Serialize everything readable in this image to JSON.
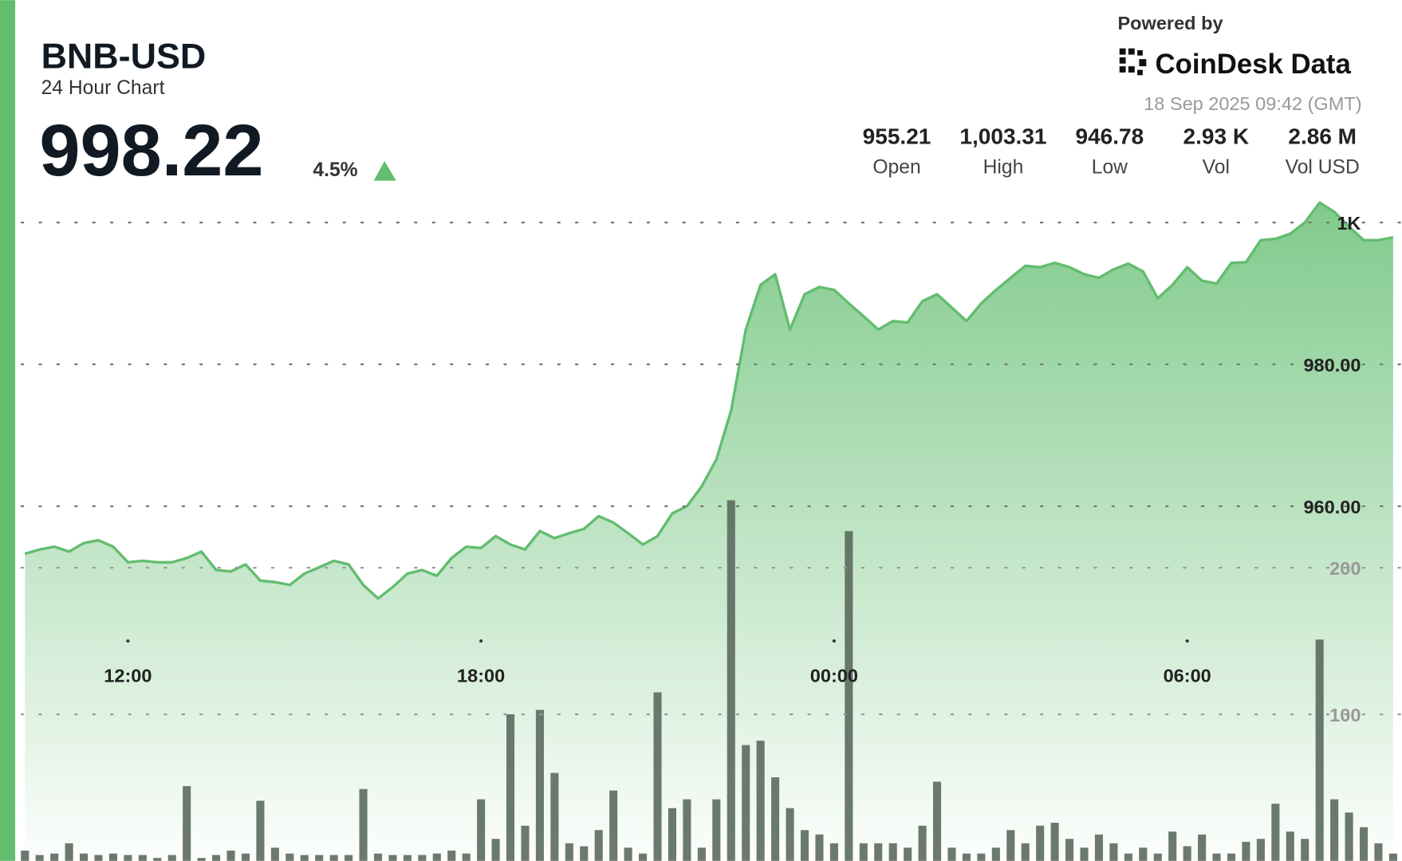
{
  "chart_data": {
    "type": "area",
    "title": "BNB-USD",
    "subtitle": "24 Hour Chart",
    "price": "998.22",
    "change": "4.5%",
    "powered_by": "Powered by",
    "brand": "CoinDesk Data",
    "timestamp": "18 Sep 2025 09:42 (GMT)",
    "stats": [
      {
        "value": "955.21",
        "label": "Open"
      },
      {
        "value": "1,003.31",
        "label": "High"
      },
      {
        "value": "946.78",
        "label": "Low"
      },
      {
        "value": "2.93 K",
        "label": "Vol"
      },
      {
        "value": "2.86 M",
        "label": "Vol USD"
      }
    ],
    "x": [
      10.25,
      10.5,
      10.75,
      11,
      11.25,
      11.5,
      11.75,
      12,
      12.25,
      12.5,
      12.75,
      13,
      13.25,
      13.5,
      13.75,
      14,
      14.25,
      14.5,
      14.75,
      15,
      15.25,
      15.5,
      15.75,
      16,
      16.25,
      16.5,
      16.75,
      17,
      17.25,
      17.5,
      17.75,
      18,
      18.25,
      18.5,
      18.75,
      19,
      19.25,
      19.5,
      19.75,
      20,
      20.25,
      20.5,
      20.75,
      21,
      21.25,
      21.5,
      21.75,
      22,
      22.25,
      22.5,
      22.75,
      23,
      23.25,
      23.5,
      23.75,
      24,
      24.25,
      24.5,
      24.75,
      25,
      25.25,
      25.5,
      25.75,
      26,
      26.25,
      26.5,
      26.75,
      27,
      27.25,
      27.5,
      27.75,
      28,
      28.25,
      28.5,
      28.75,
      29,
      29.25,
      29.5,
      29.75,
      30,
      30.25,
      30.5,
      30.75,
      31,
      31.25,
      31.5,
      31.75,
      32,
      32.25,
      32.5,
      32.75,
      33,
      33.25,
      33.5
    ],
    "series": [
      {
        "type": "line",
        "axis": "y",
        "color": "#62bd6f",
        "values": [
          953.3,
          953.9,
          954.3,
          953.6,
          954.8,
          955.2,
          954.3,
          952.1,
          952.3,
          952.1,
          952.1,
          952.7,
          953.6,
          951.0,
          950.8,
          951.8,
          949.5,
          949.3,
          948.9,
          950.5,
          951.4,
          952.3,
          951.8,
          948.9,
          947.0,
          948.6,
          950.5,
          951.0,
          950.2,
          952.7,
          954.3,
          954.1,
          955.8,
          954.6,
          953.9,
          956.5,
          955.5,
          956.2,
          956.8,
          958.6,
          957.7,
          956.2,
          954.6,
          955.8,
          959.0,
          960.0,
          962.8,
          966.6,
          973.5,
          984.9,
          991.2,
          992.7,
          984.9,
          989.9,
          990.9,
          990.5,
          988.6,
          986.8,
          984.9,
          986.1,
          985.9,
          988.9,
          989.9,
          988.0,
          986.1,
          988.6,
          990.5,
          992.2,
          993.9,
          993.7,
          994.3,
          993.7,
          992.7,
          992.2,
          993.4,
          994.2,
          993.1,
          989.3,
          991.2,
          993.7,
          991.8,
          991.4,
          994.3,
          994.4,
          997.5,
          997.7,
          998.4,
          1000.0,
          1002.8,
          1001.5,
          999.4,
          997.5,
          997.5,
          997.9
        ]
      },
      {
        "type": "bar",
        "axis": "y2",
        "color": "#5b6a5e",
        "values": [
          7,
          4,
          5,
          12,
          5,
          4,
          5,
          4,
          4,
          2,
          4,
          51,
          2,
          4,
          7,
          5,
          41,
          9,
          5,
          4,
          4,
          4,
          4,
          49,
          5,
          4,
          4,
          4,
          5,
          7,
          5,
          42,
          15,
          100,
          24,
          103,
          60,
          12,
          10,
          21,
          48,
          9,
          5,
          115,
          36,
          42,
          9,
          42,
          246,
          79,
          82,
          57,
          36,
          21,
          18,
          12,
          225,
          12,
          12,
          12,
          9,
          24,
          54,
          9,
          5,
          5,
          9,
          21,
          12,
          24,
          26,
          15,
          9,
          18,
          12,
          5,
          9,
          5,
          20,
          10,
          18,
          5,
          5,
          13,
          15,
          39,
          20,
          15,
          151,
          42,
          33,
          23,
          12,
          5
        ]
      }
    ],
    "xlim": [
      10.1,
      33.65
    ],
    "xticks": [
      {
        "value": 12,
        "label": "12:00"
      },
      {
        "value": 18,
        "label": "18:00"
      },
      {
        "value": 24,
        "label": "00:00"
      },
      {
        "value": 30,
        "label": "06:00"
      }
    ],
    "ylim": [
      910,
      1003
    ],
    "yticks": [
      {
        "value": 960,
        "label": "960.00"
      },
      {
        "value": 980,
        "label": "980.00"
      },
      {
        "value": 1000,
        "label": "1K"
      }
    ],
    "y2lim": [
      0,
      450
    ],
    "y2ticks": [
      100,
      200
    ],
    "grid": true
  }
}
